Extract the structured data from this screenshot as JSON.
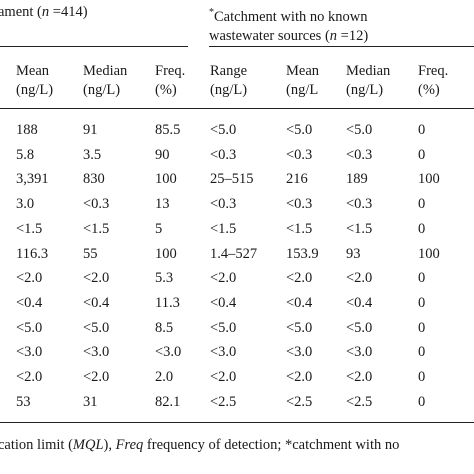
{
  "group_left": {
    "prefix": "ament (",
    "n_var": "n",
    "n_value": " =414)"
  },
  "group_right": {
    "asterisk": "*",
    "line1": "Catchment with no known",
    "line2_prefix": "wastewater sources (",
    "n_var": "n",
    "n_value": " =12)"
  },
  "columns": [
    {
      "line1": "Mean",
      "line2": "(ng/L)"
    },
    {
      "line1": "Median",
      "line2": "(ng/L)"
    },
    {
      "line1": "Freq.",
      "line2": "(%)"
    },
    {
      "line1": "Range",
      "line2": "(ng/L)"
    },
    {
      "line1": "Mean",
      "line2": "(ng/L"
    },
    {
      "line1": "Median",
      "line2": "(ng/L)"
    },
    {
      "line1": "Freq.",
      "line2": "(%)"
    }
  ],
  "rows": [
    [
      "188",
      "91",
      "85.5",
      "<5.0",
      "<5.0",
      "<5.0",
      "0"
    ],
    [
      "5.8",
      "3.5",
      "90",
      "<0.3",
      "<0.3",
      "<0.3",
      "0"
    ],
    [
      "3,391",
      "830",
      "100",
      "25–515",
      "216",
      "189",
      "100"
    ],
    [
      "3.0",
      "<0.3",
      "13",
      "<0.3",
      "<0.3",
      "<0.3",
      "0"
    ],
    [
      "<1.5",
      "<1.5",
      "5",
      "<1.5",
      "<1.5",
      "<1.5",
      "0"
    ],
    [
      "116.3",
      "55",
      "100",
      "1.4–527",
      "153.9",
      "93",
      "100"
    ],
    [
      "<2.0",
      "<2.0",
      "5.3",
      "<2.0",
      "<2.0",
      "<2.0",
      "0"
    ],
    [
      "<0.4",
      "<0.4",
      "11.3",
      "<0.4",
      "<0.4",
      "<0.4",
      "0"
    ],
    [
      "<5.0",
      "<5.0",
      "8.5",
      "<5.0",
      "<5.0",
      "<5.0",
      "0"
    ],
    [
      "<3.0",
      "<3.0",
      "<3.0",
      "<3.0",
      "<3.0",
      "<3.0",
      "0"
    ],
    [
      "<2.0",
      "<2.0",
      "2.0",
      "<2.0",
      "<2.0",
      "<2.0",
      "0"
    ],
    [
      "53",
      "31",
      "82.1",
      "<2.5",
      "<2.5",
      "<2.5",
      "0"
    ]
  ],
  "footnote": {
    "t1": "cation limit (",
    "mql": "MQL",
    "t2": "), ",
    "freq": "Freq",
    "t3": " frequency of detection; *catchment with no"
  }
}
